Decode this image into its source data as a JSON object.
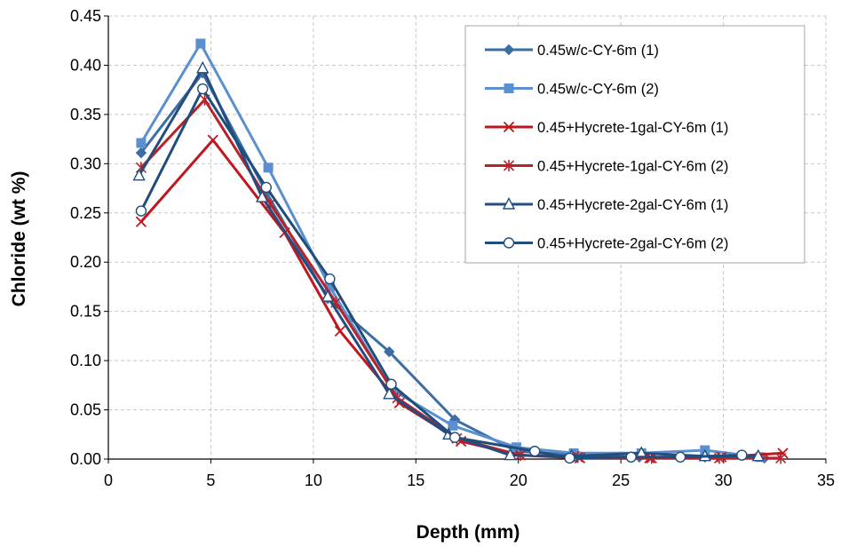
{
  "chart_data": {
    "type": "line",
    "title": "",
    "xlabel": "Depth (mm)",
    "ylabel": "Chloride (wt %)",
    "xlim": [
      0,
      35
    ],
    "ylim": [
      0,
      0.45
    ],
    "xticks": [
      "0",
      "5",
      "10",
      "15",
      "20",
      "25",
      "30",
      "35"
    ],
    "yticks": [
      "0.00",
      "0.05",
      "0.10",
      "0.15",
      "0.20",
      "0.25",
      "0.30",
      "0.35",
      "0.40",
      "0.45"
    ],
    "grid": true,
    "legend_position": "top-right",
    "series": [
      {
        "name": "0.45w/c-CY-6m (1)",
        "color": "#3a6ea5",
        "marker": "diamond",
        "x": [
          1.6,
          4.6,
          7.7,
          10.7,
          13.7,
          16.9,
          19.9,
          22.9,
          25.9,
          29.1,
          32.0
        ],
        "y": [
          0.311,
          0.392,
          0.271,
          0.163,
          0.109,
          0.04,
          0.008,
          0.004,
          0.002,
          0.002,
          0.001
        ]
      },
      {
        "name": "0.45w/c-CY-6m (2)",
        "color": "#5b8fd0",
        "marker": "square",
        "x": [
          1.6,
          4.5,
          7.8,
          10.8,
          13.8,
          16.8,
          19.9,
          22.7,
          26.0,
          29.1,
          31.8
        ],
        "y": [
          0.321,
          0.422,
          0.296,
          0.175,
          0.071,
          0.034,
          0.012,
          0.006,
          0.006,
          0.009,
          0.002
        ]
      },
      {
        "name": "0.45+Hycrete-1gal-CY-6m (1)",
        "color": "#c0161e",
        "marker": "x",
        "x": [
          1.6,
          5.1,
          8.6,
          11.3,
          14.2,
          17.2,
          20.1,
          23.0,
          26.4,
          29.9,
          32.9
        ],
        "y": [
          0.241,
          0.324,
          0.23,
          0.13,
          0.057,
          0.018,
          0.004,
          0.001,
          0.001,
          0.002,
          0.006
        ]
      },
      {
        "name": "0.45+Hycrete-1gal-CY-6m (2)",
        "color": "#b8232a",
        "marker": "asterisk",
        "x": [
          1.6,
          4.7,
          7.9,
          11.1,
          14.1,
          17.0,
          20.1,
          22.9,
          26.5,
          29.8,
          32.8
        ],
        "y": [
          0.296,
          0.365,
          0.259,
          0.159,
          0.062,
          0.021,
          0.004,
          0.002,
          0.001,
          0.001,
          0.001
        ]
      },
      {
        "name": "0.45+Hycrete-2gal-CY-6m (1)",
        "color": "#244d7f",
        "marker": "triangle",
        "x": [
          1.5,
          4.6,
          7.5,
          10.7,
          13.7,
          16.6,
          19.6,
          22.6,
          26.0,
          29.1,
          31.7
        ],
        "y": [
          0.288,
          0.397,
          0.266,
          0.165,
          0.066,
          0.025,
          0.004,
          0.003,
          0.006,
          0.003,
          0.003
        ]
      },
      {
        "name": "0.45+Hycrete-2gal-CY-6m (2)",
        "color": "#1f4e7a",
        "marker": "circle",
        "x": [
          1.6,
          4.6,
          7.7,
          10.8,
          13.8,
          16.9,
          20.8,
          22.5,
          25.5,
          27.9,
          30.9
        ],
        "y": [
          0.252,
          0.376,
          0.276,
          0.183,
          0.076,
          0.022,
          0.008,
          0.001,
          0.002,
          0.002,
          0.004
        ]
      }
    ]
  }
}
